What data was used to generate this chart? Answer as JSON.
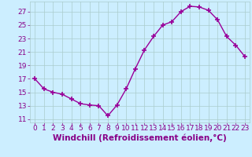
{
  "x": [
    0,
    1,
    2,
    3,
    4,
    5,
    6,
    7,
    8,
    9,
    10,
    11,
    12,
    13,
    14,
    15,
    16,
    17,
    18,
    19,
    20,
    21,
    22,
    23
  ],
  "y": [
    17,
    15.5,
    15,
    14.7,
    14,
    13.3,
    13.1,
    13,
    11.5,
    13.1,
    15.5,
    18.5,
    21.3,
    23.3,
    25,
    25.5,
    27,
    27.8,
    27.7,
    27.2,
    25.8,
    23.3,
    22,
    20.3
  ],
  "line_color": "#990099",
  "marker": "+",
  "markersize": 4,
  "linewidth": 1.0,
  "xlabel": "Windchill (Refroidissement éolien,°C)",
  "xlim": [
    -0.5,
    23.5
  ],
  "ylim": [
    10.5,
    28.5
  ],
  "yticks": [
    11,
    13,
    15,
    17,
    19,
    21,
    23,
    25,
    27
  ],
  "xticks": [
    0,
    1,
    2,
    3,
    4,
    5,
    6,
    7,
    8,
    9,
    10,
    11,
    12,
    13,
    14,
    15,
    16,
    17,
    18,
    19,
    20,
    21,
    22,
    23
  ],
  "bg_color": "#cceeff",
  "grid_color": "#aacccc",
  "tick_color": "#880088",
  "label_color": "#880088",
  "font_size": 6.5,
  "xlabel_fontsize": 7.5
}
